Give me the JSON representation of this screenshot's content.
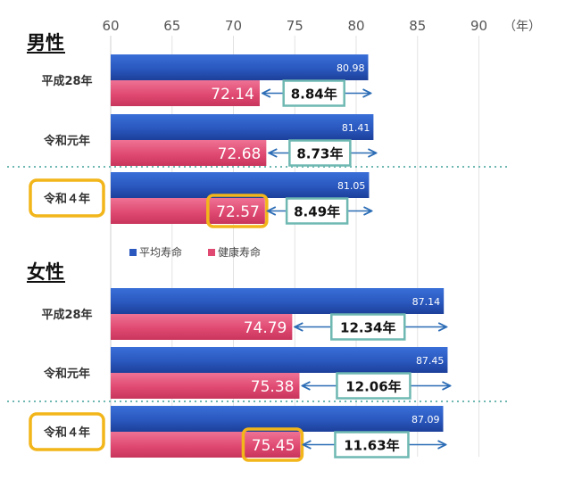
{
  "chart_data": {
    "type": "bar",
    "orientation": "horizontal",
    "x_unit": "（年）",
    "xlim": [
      60,
      90
    ],
    "x_ticks": [
      60,
      65,
      70,
      75,
      80,
      85,
      90
    ],
    "legend": [
      "平均寿命",
      "健康寿命"
    ],
    "colors": {
      "avg": "#2a58be",
      "healthy": "#e04a72",
      "highlight": "#f2b51a",
      "gap_box": "#6fb8b2",
      "arrow": "#2b6cb5"
    },
    "groups": [
      {
        "section": "男性",
        "rows": [
          {
            "label": "平成28年",
            "avg": 80.98,
            "avg_text": "80.98",
            "healthy": 72.14,
            "healthy_text": "72.14",
            "gap": "8.84年",
            "highlight": false
          },
          {
            "label": "令和元年",
            "avg": 81.41,
            "avg_text": "81.41",
            "healthy": 72.68,
            "healthy_text": "72.68",
            "gap": "8.73年",
            "highlight": false
          },
          {
            "label": "令和４年",
            "avg": 81.05,
            "avg_text": "81.05",
            "healthy": 72.57,
            "healthy_text": "72.57",
            "gap": "8.49年",
            "highlight": true
          }
        ]
      },
      {
        "section": "女性",
        "rows": [
          {
            "label": "平成28年",
            "avg": 87.14,
            "avg_text": "87.14",
            "healthy": 74.79,
            "healthy_text": "74.79",
            "gap": "12.34年",
            "highlight": false
          },
          {
            "label": "令和元年",
            "avg": 87.45,
            "avg_text": "87.45",
            "healthy": 75.38,
            "healthy_text": "75.38",
            "gap": "12.06年",
            "highlight": false
          },
          {
            "label": "令和４年",
            "avg": 87.09,
            "avg_text": "87.09",
            "healthy": 75.45,
            "healthy_text": "75.45",
            "gap": "11.63年",
            "highlight": true
          }
        ]
      }
    ]
  }
}
